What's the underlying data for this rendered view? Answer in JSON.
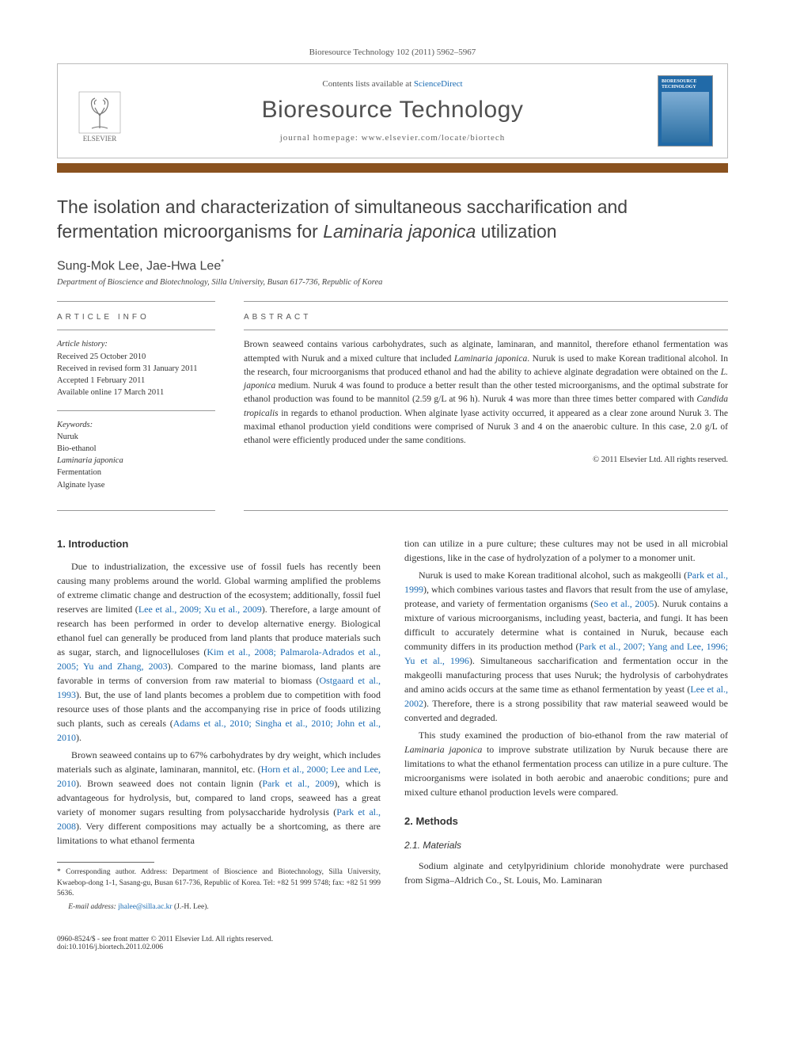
{
  "header": {
    "citation": "Bioresource Technology 102 (2011) 5962–5967",
    "contents_line_prefix": "Contents lists available at ",
    "contents_link": "ScienceDirect",
    "journal_name": "Bioresource Technology",
    "homepage_prefix": "journal homepage: ",
    "homepage_url": "www.elsevier.com/locate/biortech",
    "elsevier_label": "ELSEVIER",
    "cover_title": "BIORESOURCE TECHNOLOGY"
  },
  "title": "The isolation and characterization of simultaneous saccharification and fermentation microorganisms for <em>Laminaria japonica</em> utilization",
  "authors": "Sung-Mok Lee, Jae-Hwa Lee",
  "author_marker": "*",
  "affiliation": "Department of Bioscience and Biotechnology, Silla University, Busan 617-736, Republic of Korea",
  "article_info": {
    "header": "ARTICLE INFO",
    "history_label": "Article history:",
    "history": [
      "Received 25 October 2010",
      "Received in revised form 31 January 2011",
      "Accepted 1 February 2011",
      "Available online 17 March 2011"
    ],
    "keywords_label": "Keywords:",
    "keywords": [
      "Nuruk",
      "Bio-ethanol",
      "Laminaria japonica",
      "Fermentation",
      "Alginate lyase"
    ]
  },
  "abstract": {
    "header": "ABSTRACT",
    "text": "Brown seaweed contains various carbohydrates, such as alginate, laminaran, and mannitol, therefore ethanol fermentation was attempted with Nuruk and a mixed culture that included <em>Laminaria japonica</em>. Nuruk is used to make Korean traditional alcohol. In the research, four microorganisms that produced ethanol and had the ability to achieve alginate degradation were obtained on the <em>L. japonica</em> medium. Nuruk 4 was found to produce a better result than the other tested microorganisms, and the optimal substrate for ethanol production was found to be mannitol (2.59 g/L at 96 h). Nuruk 4 was more than three times better compared with <em>Candida tropicalis</em> in regards to ethanol production. When alginate lyase activity occurred, it appeared as a clear zone around Nuruk 3. The maximal ethanol production yield conditions were comprised of Nuruk 3 and 4 on the anaerobic culture. In this case, 2.0 g/L of ethanol were efficiently produced under the same conditions.",
    "copyright": "© 2011 Elsevier Ltd. All rights reserved."
  },
  "body": {
    "intro_heading": "1. Introduction",
    "intro_p1": "Due to industrialization, the excessive use of fossil fuels has recently been causing many problems around the world. Global warming amplified the problems of extreme climatic change and destruction of the ecosystem; additionally, fossil fuel reserves are limited (",
    "intro_p1_ref1": "Lee et al., 2009; Xu et al., 2009",
    "intro_p1b": "). Therefore, a large amount of research has been performed in order to develop alternative energy. Biological ethanol fuel can generally be produced from land plants that produce materials such as sugar, starch, and lignocelluloses (",
    "intro_p1_ref2": "Kim et al., 2008; Palmarola-Adrados et al., 2005; Yu and Zhang, 2003",
    "intro_p1c": "). Compared to the marine biomass, land plants are favorable in terms of conversion from raw material to biomass (",
    "intro_p1_ref3": "Ostgaard et al., 1993",
    "intro_p1d": "). But, the use of land plants becomes a problem due to competition with food resource uses of those plants and the accompanying rise in price of foods utilizing such plants, such as cereals (",
    "intro_p1_ref4": "Adams et al., 2010; Singha et al., 2010; John et al., 2010",
    "intro_p1e": ").",
    "intro_p2a": "Brown seaweed contains up to 67% carbohydrates by dry weight, which includes materials such as alginate, laminaran, mannitol, etc. (",
    "intro_p2_ref1": "Horn et al., 2000; Lee and Lee, 2010",
    "intro_p2b": "). Brown seaweed does not contain lignin (",
    "intro_p2_ref2": "Park et al., 2009",
    "intro_p2c": "), which is advantageous for hydrolysis, but, compared to land crops, seaweed has a great variety of monomer sugars resulting from polysaccharide hydrolysis (",
    "intro_p2_ref3": "Park et al., 2008",
    "intro_p2d": "). Very different compositions may actually be a shortcoming, as there are limitations to what ethanol fermenta",
    "intro_p2e": "tion can utilize in a pure culture; these cultures may not be used in all microbial digestions, like in the case of hydrolyzation of a polymer to a monomer unit.",
    "intro_p3a": "Nuruk is used to make Korean traditional alcohol, such as makgeolli (",
    "intro_p3_ref1": "Park et al., 1999",
    "intro_p3b": "), which combines various tastes and flavors that result from the use of amylase, protease, and variety of fermentation organisms (",
    "intro_p3_ref2": "Seo et al., 2005",
    "intro_p3c": "). Nuruk contains a mixture of various microorganisms, including yeast, bacteria, and fungi. It has been difficult to accurately determine what is contained in Nuruk, because each community differs in its production method (",
    "intro_p3_ref3": "Park et al., 2007; Yang and Lee, 1996; Yu et al., 1996",
    "intro_p3d": "). Simultaneous saccharification and fermentation occur in the makgeolli manufacturing process that uses Nuruk; the hydrolysis of carbohydrates and amino acids occurs at the same time as ethanol fermentation by yeast (",
    "intro_p3_ref4": "Lee et al., 2002",
    "intro_p3e": "). Therefore, there is a strong possibility that raw material seaweed would be converted and degraded.",
    "intro_p4": "This study examined the production of bio-ethanol from the raw material of <em>Laminaria japonica</em> to improve substrate utilization by Nuruk because there are limitations to what the ethanol fermentation process can utilize in a pure culture. The microorganisms were isolated in both aerobic and anaerobic conditions; pure and mixed culture ethanol production levels were compared.",
    "methods_heading": "2. Methods",
    "materials_heading": "2.1. Materials",
    "materials_p": "Sodium alginate and cetylpyridinium chloride monohydrate were purchased from Sigma–Aldrich Co., St. Louis, Mo. Laminaran"
  },
  "footnotes": {
    "corr_label": "* Corresponding author. Address:",
    "corr_text": " Department of Bioscience and Biotechnology, Silla University, Kwaebop-dong 1-1, Sasang-gu, Busan 617-736, Republic of Korea. Tel: +82 51 999 5748; fax: +82 51 999 5636.",
    "email_label": "E-mail address:",
    "email": "jhalee@silla.ac.kr",
    "email_suffix": " (J.-H. Lee)."
  },
  "footer": {
    "line1": "0960-8524/$ - see front matter © 2011 Elsevier Ltd. All rights reserved.",
    "line2": "doi:10.1016/j.biortech.2011.02.006"
  },
  "colors": {
    "bar": "#8a521f",
    "link": "#1a6bb3",
    "cover": "#216aa8"
  }
}
